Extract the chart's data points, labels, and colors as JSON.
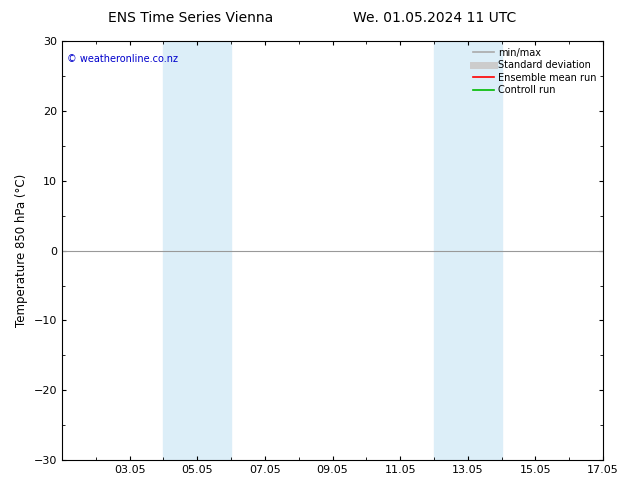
{
  "title_left": "ENS Time Series Vienna",
  "title_right": "We. 01.05.2024 11 UTC",
  "ylabel": "Temperature 850 hPa (°C)",
  "ylim": [
    -30,
    30
  ],
  "yticks": [
    -30,
    -20,
    -10,
    0,
    10,
    20,
    30
  ],
  "xlim": [
    0,
    16
  ],
  "xtick_labels": [
    "03.05",
    "05.05",
    "07.05",
    "09.05",
    "11.05",
    "13.05",
    "15.05",
    "17.05"
  ],
  "xtick_positions": [
    2,
    4,
    6,
    8,
    10,
    12,
    14,
    16
  ],
  "shade_bands": [
    {
      "x_start": 3,
      "x_end": 5,
      "color": "#dceef8"
    },
    {
      "x_start": 11,
      "x_end": 13,
      "color": "#dceef8"
    }
  ],
  "hline_y": 0,
  "hline_color": "#999999",
  "copyright_text": "© weatheronline.co.nz",
  "copyright_color": "#0000cc",
  "legend_items": [
    {
      "label": "min/max",
      "color": "#aaaaaa",
      "lw": 1.2,
      "style": "solid"
    },
    {
      "label": "Standard deviation",
      "color": "#cccccc",
      "lw": 5,
      "style": "solid"
    },
    {
      "label": "Ensemble mean run",
      "color": "#ff0000",
      "lw": 1.2,
      "style": "solid"
    },
    {
      "label": "Controll run",
      "color": "#00bb00",
      "lw": 1.2,
      "style": "solid"
    }
  ],
  "bg_color": "#ffffff",
  "plot_bg_color": "#ffffff",
  "border_color": "#000000",
  "title_fontsize": 10,
  "tick_fontsize": 8,
  "label_fontsize": 8.5,
  "copyright_fontsize": 7,
  "legend_fontsize": 7
}
